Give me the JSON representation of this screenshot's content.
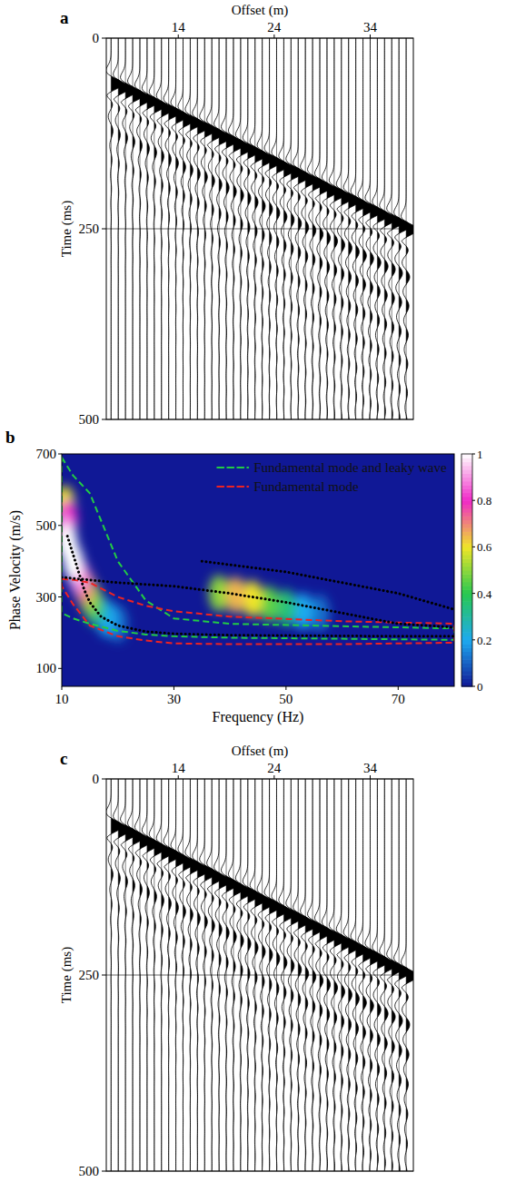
{
  "chart_data": [
    {
      "type": "seismogram",
      "panel_label": "a",
      "x_label": "Offset (m)",
      "y_label": "Time (ms)",
      "xlim": [
        6.5,
        38.5
      ],
      "ylim": [
        0,
        500
      ],
      "xticks": [
        14,
        24,
        34
      ],
      "yticks": [
        0,
        250,
        500
      ],
      "grid": true,
      "x": [
        7,
        7.75,
        8.5,
        9.25,
        10,
        10.75,
        11.5,
        12.25,
        13,
        13.75,
        14.5,
        15.25,
        16,
        16.75,
        17.5,
        18.25,
        19,
        19.75,
        20.5,
        21.25,
        22,
        22.75,
        23.5,
        24.25,
        25,
        25.75,
        26.5,
        27.25,
        28,
        28.75,
        29.5,
        30.25,
        31,
        31.75,
        32.5,
        33.25,
        34,
        34.75,
        35.5,
        36.25,
        37,
        37.75
      ],
      "values": [
        45,
        50,
        54,
        59,
        64,
        68,
        73,
        78,
        82,
        87,
        92,
        96,
        101,
        105,
        110,
        115,
        119,
        124,
        129,
        133,
        138,
        143,
        147,
        152,
        157,
        161,
        166,
        171,
        175,
        180,
        185,
        189,
        194,
        198,
        203,
        208,
        212,
        217,
        222,
        226,
        231,
        236
      ]
    },
    {
      "type": "heatmap",
      "panel_label": "b",
      "x_label": "Frequency (Hz)",
      "y_label": "Phase Velocity (m/s)",
      "xlim": [
        10,
        80
      ],
      "ylim": [
        50,
        700
      ],
      "xticks": [
        10,
        30,
        50,
        70
      ],
      "yticks": [
        100,
        300,
        500,
        700
      ],
      "colorbar_lim": [
        0,
        1
      ],
      "colorbar_ticks": [
        0,
        0.2,
        0.4,
        0.6,
        0.8,
        1
      ],
      "legend": "top-right",
      "energy": {
        "x": [
          10.5,
          10.5,
          11,
          11,
          12,
          13,
          14,
          15,
          16,
          18,
          20,
          38,
          41,
          44,
          47,
          50,
          53,
          56
        ],
        "y": [
          560,
          480,
          520,
          450,
          400,
          360,
          330,
          300,
          270,
          240,
          225,
          310,
          305,
          295,
          280,
          270,
          260,
          255
        ],
        "values": [
          0.6,
          0.9,
          0.8,
          1,
          1,
          0.9,
          0.7,
          0.5,
          0.35,
          0.2,
          0.12,
          0.5,
          0.65,
          0.6,
          0.45,
          0.35,
          0.2,
          0.12
        ]
      },
      "series": [
        {
          "name": "Fundamental mode and leaky wave",
          "type": "band",
          "color": "#22cc44",
          "line_style": "dashed",
          "x": [
            10,
            12,
            15,
            20,
            25,
            30,
            40,
            60,
            80
          ],
          "values": [
            690,
            640,
            590,
            400,
            290,
            240,
            225,
            218,
            212
          ],
          "lower": [
            255,
            240,
            225,
            205,
            195,
            190,
            186,
            183,
            180
          ]
        },
        {
          "name": "Fundamental mode",
          "type": "band",
          "color": "#ee2222",
          "line_style": "dashed",
          "x": [
            10,
            12,
            15,
            20,
            25,
            30,
            40,
            60,
            80
          ],
          "values": [
            350,
            348,
            340,
            300,
            275,
            260,
            245,
            232,
            225
          ],
          "lower": [
            330,
            280,
            220,
            190,
            178,
            170,
            168,
            168,
            172
          ]
        },
        {
          "type": "line",
          "color": "#000000",
          "line_style": "dotted",
          "x": [
            11,
            12,
            13,
            14,
            15,
            17,
            20,
            25,
            30,
            40,
            50,
            60,
            70,
            80
          ],
          "values": [
            470,
            420,
            370,
            320,
            285,
            245,
            220,
            203,
            197,
            193,
            192,
            191,
            190,
            190
          ]
        },
        {
          "type": "line",
          "color": "#000000",
          "line_style": "dotted",
          "x": [
            10,
            20,
            30,
            40,
            50,
            60,
            70,
            80
          ],
          "values": [
            355,
            340,
            330,
            310,
            285,
            255,
            225,
            215
          ]
        },
        {
          "type": "line",
          "color": "#000000",
          "line_style": "dotted",
          "x": [
            35,
            50,
            60,
            70,
            80
          ],
          "values": [
            400,
            370,
            340,
            310,
            265
          ]
        }
      ]
    },
    {
      "type": "seismogram",
      "panel_label": "c",
      "x_label": "Offset (m)",
      "y_label": "Time (ms)",
      "xlim": [
        6.5,
        38.5
      ],
      "ylim": [
        0,
        500
      ],
      "xticks": [
        14,
        24,
        34
      ],
      "yticks": [
        0,
        250,
        500
      ],
      "grid": true,
      "x": [
        7,
        7.75,
        8.5,
        9.25,
        10,
        10.75,
        11.5,
        12.25,
        13,
        13.75,
        14.5,
        15.25,
        16,
        16.75,
        17.5,
        18.25,
        19,
        19.75,
        20.5,
        21.25,
        22,
        22.75,
        23.5,
        24.25,
        25,
        25.75,
        26.5,
        27.25,
        28,
        28.75,
        29.5,
        30.25,
        31,
        31.75,
        32.5,
        33.25,
        34,
        34.75,
        35.5,
        36.25,
        37,
        37.75
      ],
      "values": [
        45,
        50,
        54,
        59,
        64,
        68,
        73,
        78,
        82,
        87,
        92,
        96,
        101,
        105,
        110,
        115,
        119,
        124,
        129,
        133,
        138,
        143,
        147,
        152,
        157,
        161,
        166,
        171,
        175,
        180,
        185,
        189,
        194,
        198,
        203,
        208,
        212,
        217,
        222,
        226,
        231,
        236
      ]
    }
  ]
}
